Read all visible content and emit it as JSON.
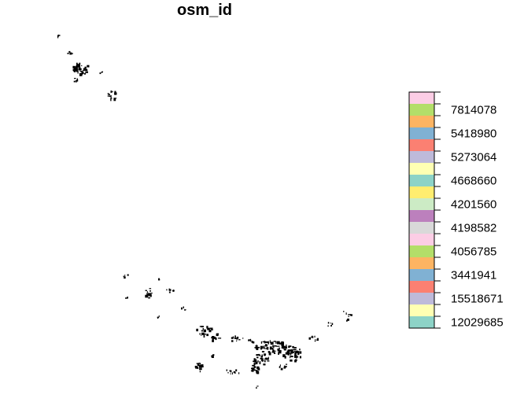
{
  "title": "osm_id",
  "legend": {
    "colors": [
      "#8DD3C7",
      "#FFFFB3",
      "#BEBADA",
      "#FB8072",
      "#80B1D3",
      "#FDB462",
      "#B3DE69",
      "#FCCDE5",
      "#D9D9D9",
      "#BC80BD",
      "#CCEBC5",
      "#FFED6F",
      "#8DD3C7",
      "#FFFFB3",
      "#BEBADA",
      "#FB8072",
      "#80B1D3",
      "#FDB462",
      "#B3DE69",
      "#FCCDE5"
    ],
    "labels": [
      "12029685",
      "15518671",
      "3441941",
      "4056785",
      "4198582",
      "4201560",
      "4668660",
      "5273064",
      "5418980",
      "7814078"
    ]
  }
}
